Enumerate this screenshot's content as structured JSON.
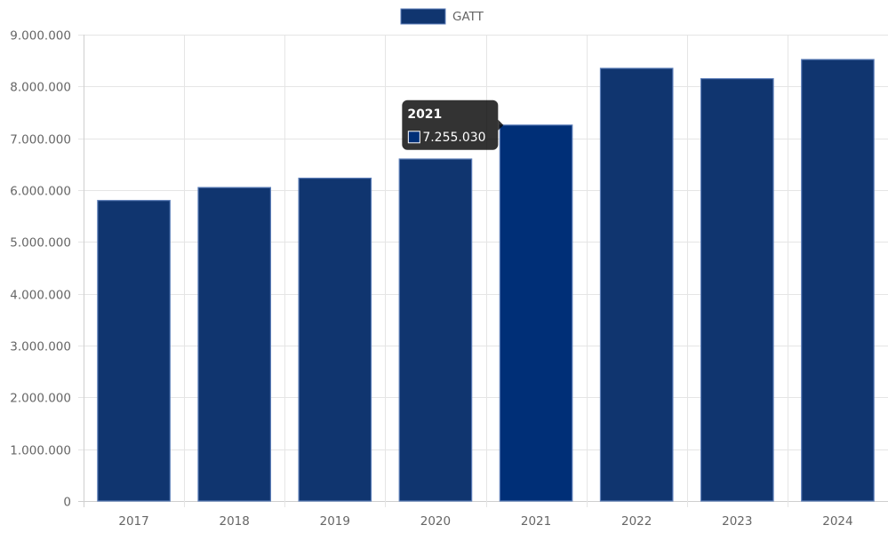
{
  "chart_data": {
    "type": "bar",
    "categories": [
      "2017",
      "2018",
      "2019",
      "2020",
      "2021",
      "2022",
      "2023",
      "2024"
    ],
    "series": [
      {
        "name": "GATT",
        "values": [
          5800000,
          6050000,
          6230000,
          6600000,
          7255030,
          8350000,
          8150000,
          8520000
        ],
        "color": "#10356F",
        "hover_color": "#002F77"
      }
    ],
    "ylim": [
      0,
      9000000
    ],
    "yticks": [
      0,
      1000000,
      2000000,
      3000000,
      4000000,
      5000000,
      6000000,
      7000000,
      8000000,
      9000000
    ],
    "ytick_labels": [
      "0",
      "1.000.000",
      "2.000.000",
      "3.000.000",
      "4.000.000",
      "5.000.000",
      "6.000.000",
      "7.000.000",
      "8.000.000",
      "9.000.000"
    ],
    "grid": true,
    "legend_position": "top",
    "tooltip": {
      "category": "2021",
      "title": "2021",
      "value_label": "7.255.030"
    }
  }
}
